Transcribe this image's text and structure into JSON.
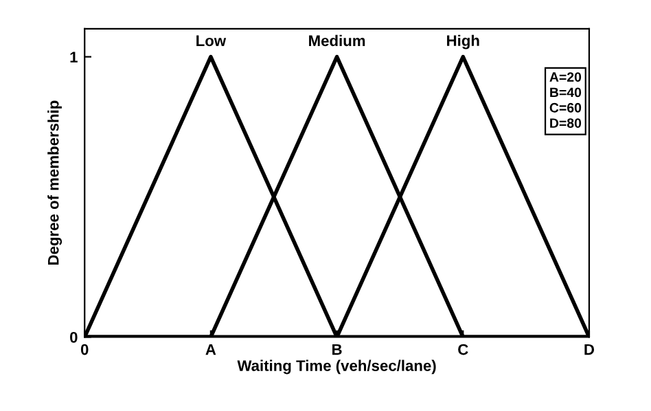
{
  "chart_data": {
    "type": "line",
    "xlabel": "Waiting Time (veh/sec/lane)",
    "ylabel": "Degree of membership",
    "categories": [
      "0",
      "A",
      "B",
      "C",
      "D"
    ],
    "series": [
      {
        "name": "Low",
        "color": "#000000",
        "values": [
          0,
          1,
          0,
          0,
          0
        ]
      },
      {
        "name": "Medium",
        "color": "#000000",
        "values": [
          0,
          0,
          1,
          0,
          0
        ]
      },
      {
        "name": "High",
        "color": "#000000",
        "values": [
          0,
          0,
          0,
          1,
          0
        ]
      }
    ],
    "ylim": [
      0,
      1.1
    ],
    "yticks": [
      0,
      1
    ],
    "annotations": [
      "A=20",
      "B=40",
      "C=60",
      "D=80"
    ],
    "grid": false,
    "legend": false,
    "marker": "none",
    "line_style": "solid"
  }
}
